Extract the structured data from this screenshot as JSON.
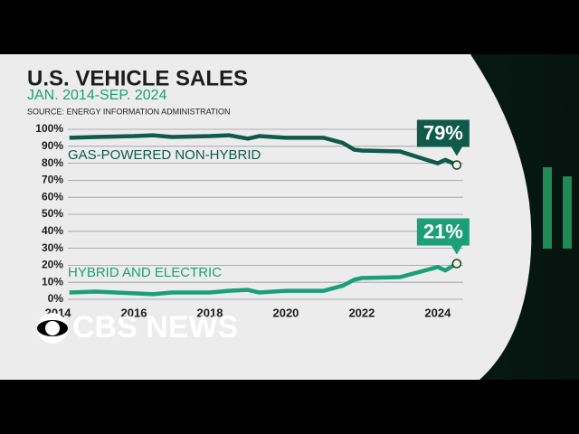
{
  "chart_data": {
    "type": "line",
    "title": "U.S. VEHICLE SALES",
    "subtitle": "JAN. 2014-SEP. 2024",
    "source": "SOURCE: ENERGY INFORMATION ADMINISTRATION",
    "logo": "CBS NEWS",
    "x": [
      2014.3,
      2015,
      2016,
      2016.5,
      2017,
      2018,
      2018.5,
      2019,
      2019.3,
      2020,
      2021,
      2021.5,
      2021.8,
      2022,
      2023,
      2024,
      2024.2,
      2024.5
    ],
    "series": [
      {
        "name": "GAS-POWERED NON-HYBRID",
        "color": "#0f5a49",
        "values": [
          95,
          95.5,
          96,
          96.5,
          95.5,
          96,
          96.5,
          94.5,
          96,
          95,
          95,
          92,
          88,
          87.5,
          87,
          80,
          82,
          79
        ],
        "value_labels": [
          null,
          null,
          null,
          null,
          null,
          null,
          null,
          null,
          null,
          null,
          null,
          null,
          null,
          null,
          null,
          null,
          null,
          "79%"
        ]
      },
      {
        "name": "HYBRID AND ELECTRIC",
        "color": "#1a9f76",
        "values": [
          4,
          4.5,
          3.5,
          3,
          4,
          4,
          5,
          5.5,
          4,
          5,
          5,
          8,
          11.5,
          12.5,
          13,
          19,
          17,
          21
        ],
        "value_labels": [
          null,
          null,
          null,
          null,
          null,
          null,
          null,
          null,
          null,
          null,
          null,
          null,
          null,
          null,
          null,
          null,
          null,
          "21%"
        ]
      }
    ],
    "xlim": [
      2014.26,
      2024.67
    ],
    "xticks": [
      2014,
      2016,
      2018,
      2020,
      2022,
      2024
    ],
    "ylim": [
      0,
      100
    ],
    "yticks": [
      {
        "value": 0,
        "label": "0%"
      },
      {
        "value": 10,
        "label": "10%"
      },
      {
        "value": 20,
        "label": "20%"
      },
      {
        "value": 30,
        "label": "30%"
      },
      {
        "value": 40,
        "label": "40%"
      },
      {
        "value": 50,
        "label": "50%"
      },
      {
        "value": 60,
        "label": "60%"
      },
      {
        "value": 70,
        "label": "70%"
      },
      {
        "value": 80,
        "label": "80%"
      },
      {
        "value": 90,
        "label": "90%"
      },
      {
        "value": 100,
        "label": "100%"
      }
    ],
    "grid": true
  }
}
